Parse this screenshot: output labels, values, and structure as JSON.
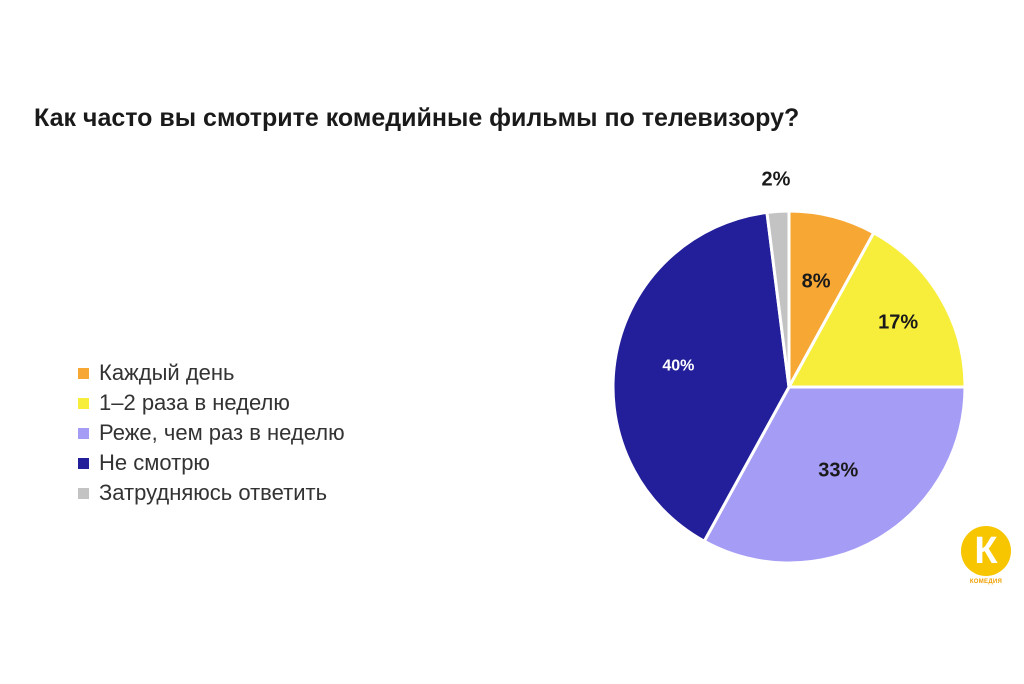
{
  "chart_data": {
    "type": "pie",
    "title": "Как часто вы смотрите комедийные фильмы по телевизору?",
    "slices": [
      {
        "name": "Каждый день",
        "value": 8,
        "label": "8%",
        "color": "#f7a834",
        "label_color": "#1a1a1a"
      },
      {
        "name": "1–2 раза в неделю",
        "value": 17,
        "label": "17%",
        "color": "#f7ee3b",
        "label_color": "#1a1a1a"
      },
      {
        "name": "Реже, чем раз в неделю",
        "value": 33,
        "label": "33%",
        "color": "#a59cf5",
        "label_color": "#1a1a1a"
      },
      {
        "name": "Не смотрю",
        "value": 40,
        "label": "40%",
        "color": "#231f9a",
        "label_color": "#ffffff"
      },
      {
        "name": "Затрудняюсь ответить",
        "value": 2,
        "label": "2%",
        "color": "#c3c3c3",
        "label_color": "#1a1a1a"
      }
    ],
    "legend_position": "left"
  },
  "logo": {
    "letter": "К",
    "text": "КОМЕДИЯ",
    "color": "#f7c600"
  }
}
